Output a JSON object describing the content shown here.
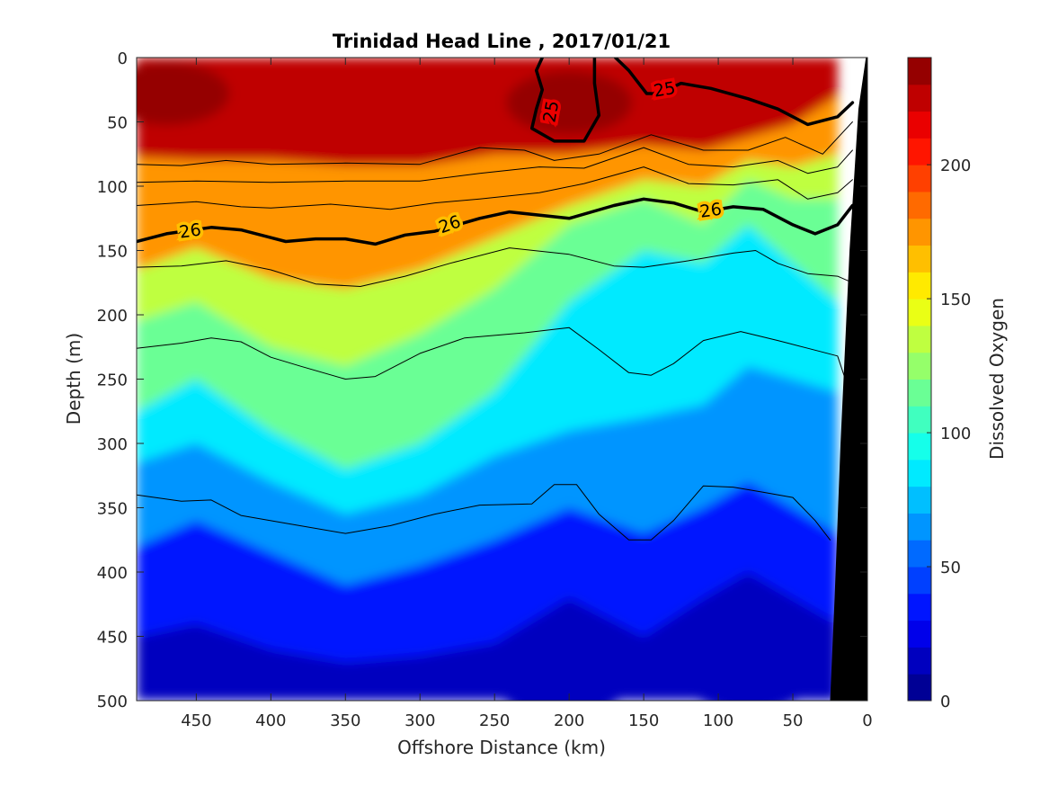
{
  "chart_data": {
    "type": "heatmap",
    "subtype": "filled-contour-section",
    "title": "Trinidad Head Line , 2017/01/21",
    "xlabel": "Offshore Distance (km)",
    "ylabel": "Depth (m)",
    "colorbar_label": "Dissolved Oxygen",
    "xlim": [
      490,
      0
    ],
    "x_reversed": true,
    "ylim": [
      500,
      0
    ],
    "y_reversed": true,
    "x_ticks": [
      450,
      400,
      350,
      300,
      250,
      200,
      150,
      100,
      50,
      0
    ],
    "y_ticks": [
      0,
      50,
      100,
      150,
      200,
      250,
      300,
      350,
      400,
      450,
      500
    ],
    "colorbar_ticks": [
      0,
      50,
      100,
      150,
      200
    ],
    "colorbar_range": [
      0,
      240
    ],
    "color_levels": 24,
    "colormap": "jet",
    "bathymetry_color": "#000000",
    "oxygen_section": {
      "x_km": [
        490,
        450,
        400,
        350,
        300,
        250,
        200,
        150,
        110,
        80,
        50,
        20
      ],
      "depth_of_value": {
        "200": [
          78,
          80,
          80,
          84,
          84,
          75,
          75,
          68,
          72,
          62,
          52,
          30
        ],
        "150": [
          165,
          148,
          172,
          180,
          165,
          140,
          115,
          95,
          100,
          80,
          85,
          75
        ],
        "125": [
          205,
          190,
          225,
          240,
          215,
          180,
          130,
          110,
          130,
          95,
          110,
          110
        ],
        "100": [
          275,
          250,
          290,
          320,
          300,
          260,
          190,
          150,
          160,
          130,
          160,
          190
        ],
        "75": [
          315,
          300,
          330,
          355,
          340,
          310,
          290,
          280,
          270,
          240,
          250,
          260
        ],
        "50": [
          380,
          360,
          385,
          410,
          395,
          375,
          350,
          370,
          350,
          330,
          350,
          370
        ],
        "25": [
          450,
          440,
          460,
          470,
          465,
          455,
          420,
          450,
          420,
          400,
          420,
          440
        ]
      },
      "high_cores": [
        {
          "x": 470,
          "y": 28,
          "value": 235
        },
        {
          "x": 200,
          "y": 35,
          "value": 230
        }
      ],
      "low_cores": [
        {
          "x": 205,
          "y": 490,
          "value": 10
        },
        {
          "x": 80,
          "y": 485,
          "value": 10
        }
      ]
    },
    "density_contours": [
      {
        "value": 25,
        "labeled": true,
        "bold": true,
        "segments": [
          [
            [
              218,
              0
            ],
            [
              222,
              10
            ],
            [
              218,
              25
            ],
            [
              222,
              40
            ],
            [
              225,
              55
            ],
            [
              210,
              65
            ],
            [
              190,
              65
            ],
            [
              180,
              45
            ],
            [
              183,
              20
            ],
            [
              183,
              0
            ]
          ],
          [
            [
              169,
              0
            ],
            [
              160,
              10
            ],
            [
              148,
              28
            ],
            [
              140,
              28
            ],
            [
              125,
              20
            ],
            [
              105,
              24
            ],
            [
              80,
              32
            ],
            [
              60,
              40
            ],
            [
              40,
              52
            ],
            [
              20,
              46
            ],
            [
              10,
              35
            ]
          ]
        ]
      },
      {
        "value": 26,
        "labeled": true,
        "bold": true,
        "segments": [
          [
            [
              490,
              143
            ],
            [
              470,
              137
            ],
            [
              440,
              132
            ],
            [
              420,
              134
            ],
            [
              400,
              140
            ],
            [
              390,
              143
            ],
            [
              370,
              141
            ],
            [
              350,
              141
            ],
            [
              330,
              145
            ],
            [
              310,
              138
            ],
            [
              290,
              135
            ],
            [
              260,
              125
            ],
            [
              240,
              120
            ],
            [
              200,
              125
            ],
            [
              170,
              115
            ],
            [
              150,
              110
            ],
            [
              130,
              113
            ],
            [
              110,
              120
            ],
            [
              90,
              116
            ],
            [
              70,
              118
            ],
            [
              50,
              130
            ],
            [
              35,
              137
            ],
            [
              20,
              130
            ],
            [
              10,
              115
            ]
          ]
        ]
      },
      {
        "value": 25.4,
        "labeled": false,
        "bold": false,
        "segments": [
          [
            [
              490,
              83
            ],
            [
              460,
              84
            ],
            [
              430,
              80
            ],
            [
              400,
              83
            ],
            [
              350,
              82
            ],
            [
              300,
              83
            ],
            [
              260,
              70
            ],
            [
              230,
              72
            ],
            [
              210,
              80
            ],
            [
              180,
              75
            ],
            [
              145,
              60
            ],
            [
              110,
              72
            ],
            [
              80,
              72
            ],
            [
              55,
              62
            ],
            [
              30,
              75
            ],
            [
              10,
              50
            ]
          ]
        ]
      },
      {
        "value": 25.6,
        "labeled": false,
        "bold": false,
        "segments": [
          [
            [
              490,
              97
            ],
            [
              450,
              96
            ],
            [
              400,
              97
            ],
            [
              350,
              96
            ],
            [
              300,
              96
            ],
            [
              260,
              90
            ],
            [
              220,
              85
            ],
            [
              190,
              86
            ],
            [
              150,
              70
            ],
            [
              120,
              83
            ],
            [
              90,
              85
            ],
            [
              60,
              80
            ],
            [
              40,
              90
            ],
            [
              20,
              85
            ],
            [
              10,
              72
            ]
          ]
        ]
      },
      {
        "value": 25.8,
        "labeled": false,
        "bold": false,
        "segments": [
          [
            [
              490,
              115
            ],
            [
              450,
              112
            ],
            [
              420,
              116
            ],
            [
              400,
              117
            ],
            [
              360,
              114
            ],
            [
              320,
              118
            ],
            [
              290,
              113
            ],
            [
              260,
              110
            ],
            [
              220,
              105
            ],
            [
              190,
              98
            ],
            [
              150,
              85
            ],
            [
              120,
              98
            ],
            [
              90,
              99
            ],
            [
              60,
              95
            ],
            [
              40,
              110
            ],
            [
              20,
              105
            ],
            [
              10,
              95
            ]
          ]
        ]
      },
      {
        "value": 26.2,
        "labeled": false,
        "bold": false,
        "segments": [
          [
            [
              490,
              163
            ],
            [
              460,
              162
            ],
            [
              430,
              158
            ],
            [
              400,
              165
            ],
            [
              370,
              176
            ],
            [
              340,
              178
            ],
            [
              310,
              170
            ],
            [
              280,
              160
            ],
            [
              240,
              148
            ],
            [
              200,
              153
            ],
            [
              170,
              162
            ],
            [
              150,
              163
            ],
            [
              120,
              158
            ],
            [
              90,
              152
            ],
            [
              75,
              150
            ],
            [
              60,
              160
            ],
            [
              40,
              168
            ],
            [
              20,
              170
            ],
            [
              10,
              175
            ]
          ]
        ]
      },
      {
        "value": 26.6,
        "labeled": false,
        "bold": false,
        "segments": [
          [
            [
              490,
              226
            ],
            [
              460,
              222
            ],
            [
              440,
              218
            ],
            [
              420,
              221
            ],
            [
              400,
              233
            ],
            [
              380,
              240
            ],
            [
              350,
              250
            ],
            [
              330,
              248
            ],
            [
              300,
              230
            ],
            [
              270,
              218
            ],
            [
              230,
              214
            ],
            [
              200,
              210
            ],
            [
              180,
              227
            ],
            [
              160,
              245
            ],
            [
              145,
              247
            ],
            [
              130,
              238
            ],
            [
              110,
              220
            ],
            [
              85,
              213
            ],
            [
              60,
              220
            ],
            [
              40,
              226
            ],
            [
              20,
              232
            ],
            [
              12,
              260
            ]
          ]
        ]
      },
      {
        "value": 26.8,
        "labeled": false,
        "bold": false,
        "segments": [
          [
            [
              490,
              340
            ],
            [
              460,
              345
            ],
            [
              440,
              344
            ],
            [
              420,
              356
            ],
            [
              390,
              362
            ],
            [
              350,
              370
            ],
            [
              320,
              364
            ],
            [
              290,
              355
            ],
            [
              260,
              348
            ],
            [
              225,
              347
            ],
            [
              210,
              332
            ],
            [
              195,
              332
            ],
            [
              180,
              355
            ],
            [
              160,
              375
            ],
            [
              145,
              375
            ],
            [
              130,
              360
            ],
            [
              110,
              333
            ],
            [
              90,
              334
            ],
            [
              70,
              338
            ],
            [
              50,
              342
            ],
            [
              35,
              360
            ],
            [
              25,
              375
            ]
          ]
        ]
      }
    ],
    "contour_labels": [
      {
        "value": "25",
        "x": 212,
        "y": 42,
        "angle": -80
      },
      {
        "value": "25",
        "x": 136,
        "y": 25,
        "angle": -10
      },
      {
        "value": "26",
        "x": 454,
        "y": 135,
        "angle": -8
      },
      {
        "value": "26",
        "x": 280,
        "y": 130,
        "angle": -20
      },
      {
        "value": "26",
        "x": 105,
        "y": 119,
        "angle": -8
      }
    ],
    "bathymetry": [
      [
        25,
        500
      ],
      [
        22,
        420
      ],
      [
        18,
        300
      ],
      [
        12,
        150
      ],
      [
        6,
        40
      ],
      [
        1,
        0
      ],
      [
        0,
        0
      ],
      [
        0,
        500
      ]
    ]
  }
}
